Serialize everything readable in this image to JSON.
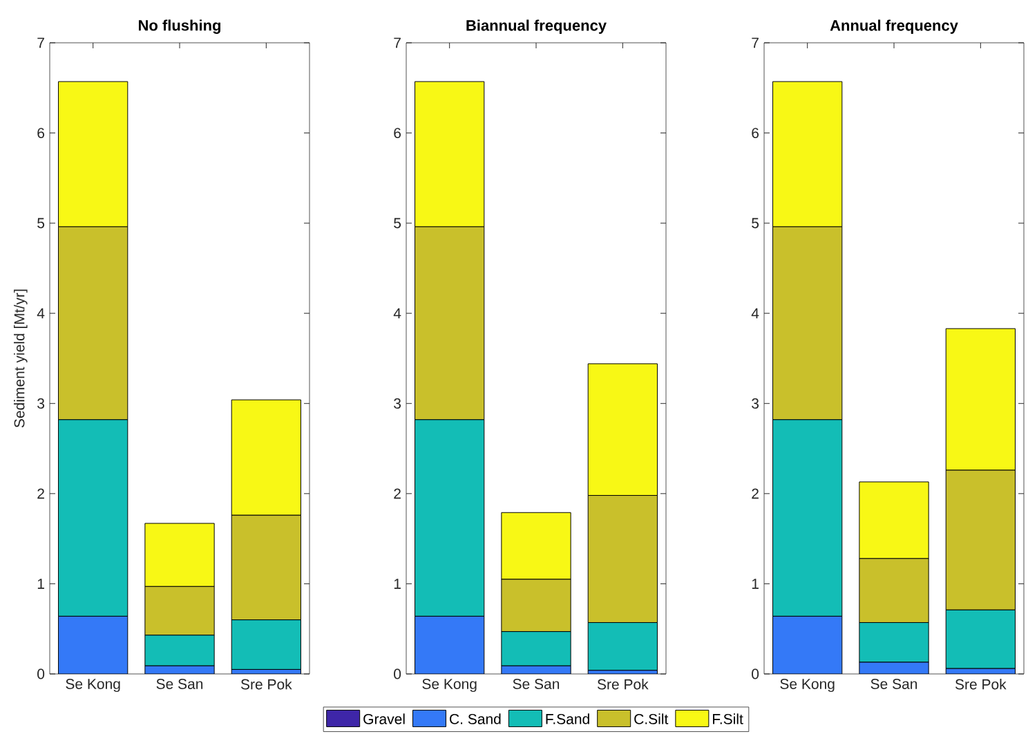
{
  "chart_data": [
    {
      "type": "bar",
      "stacked": true,
      "title": "No flushing",
      "ylabel": "Sediment yield [Mt/yr]",
      "categories": [
        "Se Kong",
        "Se San",
        "Sre Pok"
      ],
      "ylim": [
        0,
        7
      ],
      "yticks": [
        0,
        1,
        2,
        3,
        4,
        5,
        6,
        7
      ],
      "series": [
        {
          "color": "#3e26a8",
          "values": [
            0,
            0,
            0
          ]
        },
        {
          "color": "#3479f7",
          "values": [
            0.64,
            0.09,
            0.05
          ]
        },
        {
          "color": "#13bdb6",
          "values": [
            2.18,
            0.34,
            0.55
          ]
        },
        {
          "color": "#c9c02b",
          "values": [
            2.14,
            0.54,
            1.16
          ]
        },
        {
          "color": "#f8f815",
          "values": [
            1.61,
            0.7,
            1.28
          ]
        }
      ]
    },
    {
      "type": "bar",
      "stacked": true,
      "title": "Biannual frequency",
      "legend": "bottom",
      "categories": [
        "Se Kong",
        "Se San",
        "Sre Pok"
      ],
      "ylim": [
        0,
        7
      ],
      "yticks": [
        0,
        1,
        2,
        3,
        4,
        5,
        6,
        7
      ],
      "series": [
        {
          "name": "Gravel",
          "color": "#3e26a8",
          "values": [
            0,
            0,
            0
          ]
        },
        {
          "name": "C. Sand",
          "color": "#3479f7",
          "values": [
            0.64,
            0.09,
            0.04
          ]
        },
        {
          "name": "F.Sand",
          "color": "#13bdb6",
          "values": [
            2.18,
            0.38,
            0.53
          ]
        },
        {
          "name": "C.Silt",
          "color": "#c9c02b",
          "values": [
            2.14,
            0.58,
            1.41
          ]
        },
        {
          "name": "F.Silt",
          "color": "#f8f815",
          "values": [
            1.61,
            0.74,
            1.46
          ]
        }
      ]
    },
    {
      "type": "bar",
      "stacked": true,
      "title": "Annual frequency",
      "categories": [
        "Se Kong",
        "Se San",
        "Sre Pok"
      ],
      "ylim": [
        0,
        7
      ],
      "yticks": [
        0,
        1,
        2,
        3,
        4,
        5,
        6,
        7
      ],
      "series": [
        {
          "color": "#3e26a8",
          "values": [
            0,
            0,
            0
          ]
        },
        {
          "color": "#3479f7",
          "values": [
            0.64,
            0.13,
            0.06
          ]
        },
        {
          "color": "#13bdb6",
          "values": [
            2.18,
            0.44,
            0.65
          ]
        },
        {
          "color": "#c9c02b",
          "values": [
            2.14,
            0.71,
            1.55
          ]
        },
        {
          "color": "#f8f815",
          "values": [
            1.61,
            0.85,
            1.57
          ]
        }
      ]
    }
  ]
}
